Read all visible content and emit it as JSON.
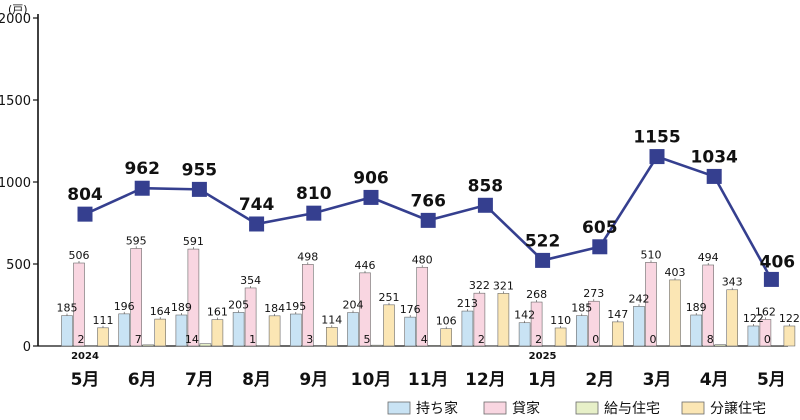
{
  "chart_data": {
    "type": "bar",
    "unit": "(戸)",
    "ylim": [
      0,
      2000
    ],
    "yticks": [
      0,
      500,
      1000,
      1500,
      2000
    ],
    "categories": [
      "5月",
      "6月",
      "7月",
      "8月",
      "9月",
      "10月",
      "11月",
      "12月",
      "1月",
      "2月",
      "3月",
      "4月",
      "5月"
    ],
    "year_labels": [
      {
        "index": 0,
        "label": "2024"
      },
      {
        "index": 8,
        "label": "2025"
      }
    ],
    "series": [
      {
        "name": "持ち家",
        "color": "#c9e3f4",
        "values": [
          185,
          196,
          189,
          205,
          195,
          204,
          176,
          213,
          142,
          185,
          242,
          189,
          122
        ]
      },
      {
        "name": "貸家",
        "color": "#f9d6e1",
        "values": [
          506,
          595,
          591,
          354,
          498,
          446,
          480,
          322,
          268,
          273,
          510,
          494,
          162
        ]
      },
      {
        "name": "給与住宅",
        "color": "#e7f0c8",
        "values": [
          2,
          7,
          14,
          1,
          3,
          5,
          4,
          2,
          2,
          0,
          0,
          8,
          0
        ]
      },
      {
        "name": "分譲住宅",
        "color": "#fbe6b4",
        "values": [
          111,
          164,
          161,
          184,
          114,
          251,
          106,
          321,
          110,
          147,
          403,
          343,
          122
        ]
      }
    ],
    "total_line": {
      "type": "line",
      "color": "#353f8f",
      "values": [
        804,
        962,
        955,
        744,
        810,
        906,
        766,
        858,
        522,
        605,
        1155,
        1034,
        406
      ]
    },
    "legend_position": "bottom-right"
  }
}
